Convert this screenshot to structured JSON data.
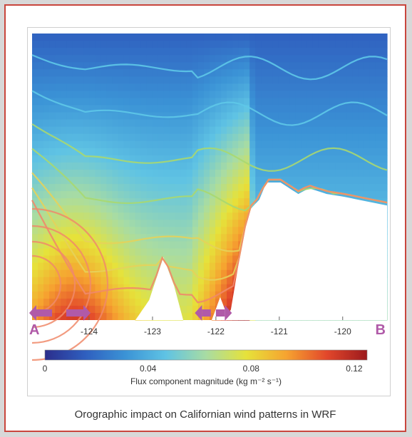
{
  "caption": "Orographic impact on Californian wind patterns in WRF",
  "chart_data": {
    "type": "heatmap",
    "title": "",
    "xlabel": "",
    "colorbar_label": "Flux component magnitude (kg m⁻² s⁻¹)",
    "x_ticks": [
      "-124",
      "-123",
      "-122",
      "-121",
      "-120"
    ],
    "x_tick_values": [
      -124,
      -123,
      -122,
      -121,
      -120
    ],
    "xlim": [
      -124.9,
      -119.3
    ],
    "colorbar_ticks": [
      "0",
      "0.04",
      "0.08",
      "0.12"
    ],
    "colorbar_values": [
      0,
      0.04,
      0.08,
      0.12
    ],
    "colorbar_range": [
      0,
      0.125
    ],
    "colormap": [
      "#2b2e8c",
      "#2f5fbf",
      "#3b93d6",
      "#5fc3e4",
      "#a8dca3",
      "#e6e23a",
      "#f6a330",
      "#e2472b",
      "#9c1a1d"
    ],
    "section_endpoints": [
      "A",
      "B"
    ],
    "endpoint_color": "#b05aa8",
    "terrain_color": "#ffffff",
    "contour_colors": [
      "#5ec8e8",
      "#a8d870",
      "#e6d25a",
      "#f08a6a"
    ]
  }
}
